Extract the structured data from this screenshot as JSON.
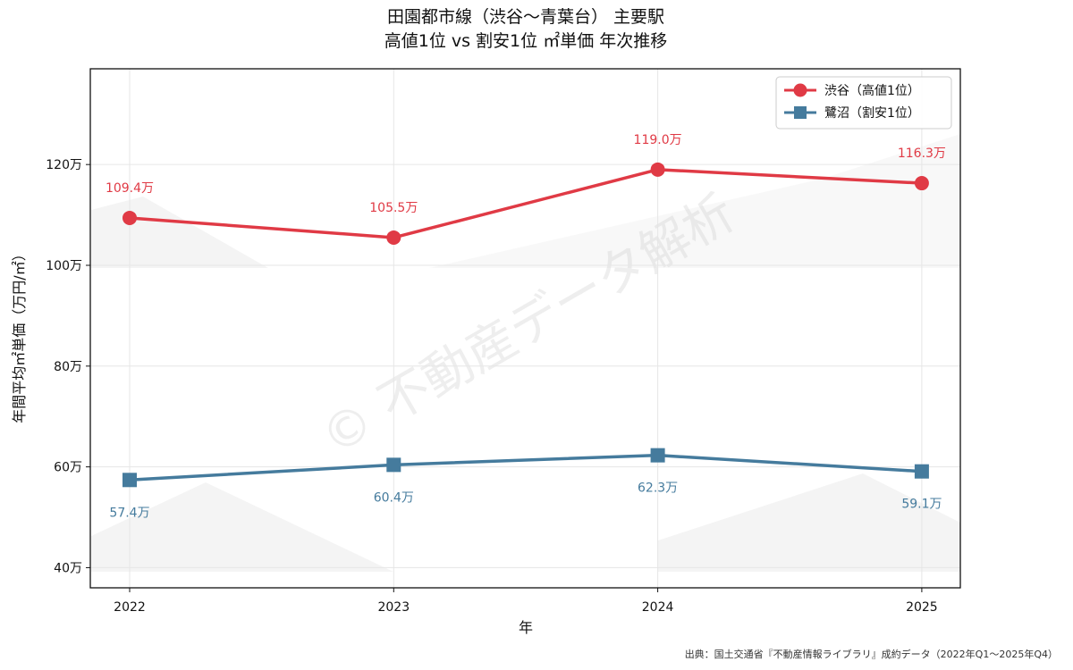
{
  "title_line1": "田園都市線（渋谷〜青葉台） 主要駅",
  "title_line2": "高値1位 vs 割安1位 ㎡単価 年次推移",
  "source": "出典：国土交通省『不動産情報ライブラリ』成約データ（2022年Q1〜2025年Q4）",
  "watermark": "© 不動産データ解析",
  "colors": {
    "series1": "#e03a45",
    "series2": "#457b9d"
  },
  "chart_data": {
    "type": "line",
    "x": [
      "2022",
      "2023",
      "2024",
      "2025"
    ],
    "xlabel": "年",
    "ylabel": "年間平均㎡単価（万円/㎡）",
    "ylim": [
      36,
      139
    ],
    "yticks": [
      40,
      60,
      80,
      100,
      120
    ],
    "ytick_labels": [
      "40万",
      "60万",
      "80万",
      "100万",
      "120万"
    ],
    "grid": true,
    "legend": "top-right",
    "series": [
      {
        "name": "渋谷（高値1位）",
        "marker": "circle",
        "values": [
          109.4,
          105.5,
          119.0,
          116.3
        ],
        "labels": [
          "109.4万",
          "105.5万",
          "119.0万",
          "116.3万"
        ]
      },
      {
        "name": "鷺沼（割安1位）",
        "marker": "square",
        "values": [
          57.4,
          60.4,
          62.3,
          59.1
        ],
        "labels": [
          "57.4万",
          "60.4万",
          "62.3万",
          "59.1万"
        ]
      }
    ]
  }
}
